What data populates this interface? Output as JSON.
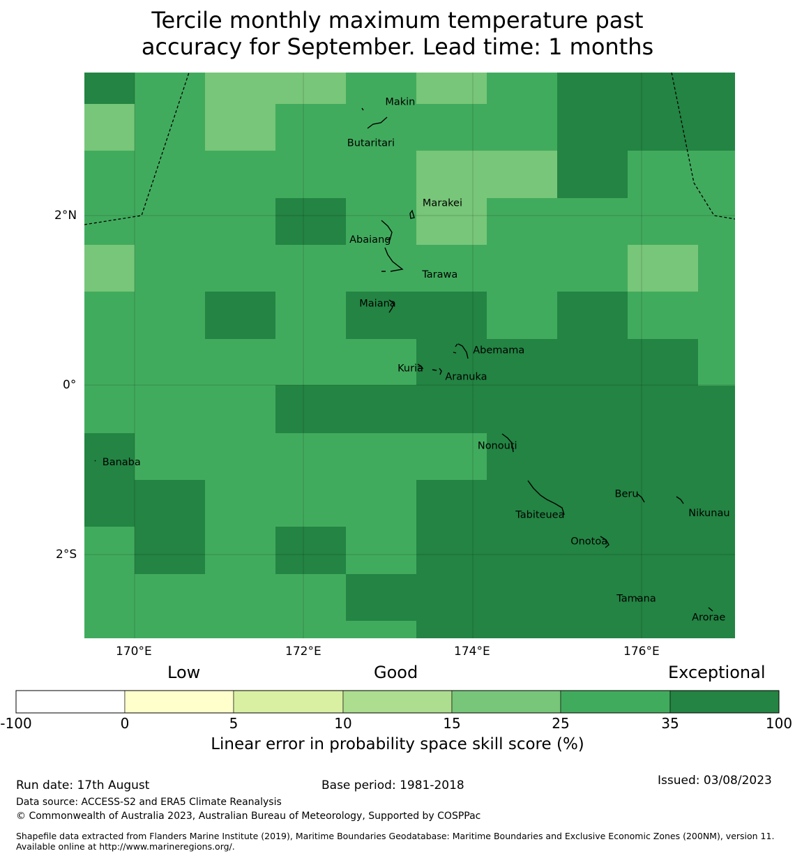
{
  "title": {
    "line1": "Tercile monthly maximum temperature past",
    "line2": "accuracy for September. Lead time: 1 months"
  },
  "map": {
    "lon_range": [
      169.4,
      177.1
    ],
    "lat_range": [
      -3.015,
      3.67
    ],
    "x_ticks": [
      "170°E",
      "172°E",
      "174°E",
      "176°E"
    ],
    "y_ticks": [
      "2°N",
      "0°",
      "2°S"
    ],
    "colors": {
      "light": "#78c679",
      "medium": "#41ab5d",
      "dark": "#238443"
    },
    "grid_levels_top_to_bottom": [
      "D M L L M L M D D",
      "L M L M M M M D D",
      "M M M M M L L D M",
      "M M M D M L M M M",
      "L M M M M M M M L M",
      "M M D M D D M D M",
      "M M M M M D D D D M",
      "M M M D D D D D D",
      "D M M M M M D D D",
      "D D M M M D D D D",
      "M D M D M D D D D",
      "M M M M D D D D D",
      "M M M M M D D D D"
    ],
    "places": [
      {
        "name": "Makin",
        "lon": 172.96,
        "lat": 3.32
      },
      {
        "name": "Butaritari",
        "lon": 172.79,
        "lat": 3.0
      },
      {
        "name": "Marakei",
        "lon": 173.27,
        "lat": 2.01
      },
      {
        "name": "Abaiang",
        "lon": 172.95,
        "lat": 1.84
      },
      {
        "name": "Tarawa",
        "lon": 173.1,
        "lat": 1.36
      },
      {
        "name": "Maiana",
        "lon": 173.05,
        "lat": 0.93
      },
      {
        "name": "Abemama",
        "lon": 173.9,
        "lat": 0.4
      },
      {
        "name": "Kuria",
        "lon": 173.42,
        "lat": 0.22
      },
      {
        "name": "Aranuka",
        "lon": 173.62,
        "lat": 0.17
      },
      {
        "name": "Nonouti",
        "lon": 174.4,
        "lat": -0.63
      },
      {
        "name": "Banaba",
        "lon": 169.53,
        "lat": -0.87
      },
      {
        "name": "Tabiteuea",
        "lon": 174.8,
        "lat": -1.43
      },
      {
        "name": "Beru",
        "lon": 175.99,
        "lat": -1.33
      },
      {
        "name": "Nikunau",
        "lon": 176.45,
        "lat": -1.36
      },
      {
        "name": "Onotoa",
        "lon": 175.55,
        "lat": -1.8
      },
      {
        "name": "Tamana",
        "lon": 175.98,
        "lat": -2.5
      },
      {
        "name": "Arorae",
        "lon": 176.82,
        "lat": -2.64
      }
    ]
  },
  "colorbar": {
    "categories": [
      "Low",
      "Good",
      "Exceptional"
    ],
    "ticks": [
      "-100",
      "0",
      "5",
      "10",
      "15",
      "25",
      "35",
      "100"
    ],
    "colors": [
      "#ffffff",
      "#ffffcc",
      "#d9f0a3",
      "#addd8e",
      "#78c679",
      "#41ab5d",
      "#238443"
    ],
    "label": "Linear error in probability space skill score (%)"
  },
  "footer": {
    "run_date": "Run date: 17th August",
    "base_period": "Base period: 1981-2018",
    "issued": "Issued: 03/08/2023",
    "data_source": "Data source: ACCESS-S2 and ERA5 Climate Reanalysis",
    "copyright": "© Commonwealth of Australia 2023, Australian Bureau of Meteorology, Supported by COSPPac",
    "shapefile": "Shapefile data extracted from Flanders Marine Institute (2019), Maritime Boundaries Geodatabase: Maritime Boundaries and Exclusive Economic Zones (200NM), version 11. Available online at http://www.marineregions.org/."
  }
}
